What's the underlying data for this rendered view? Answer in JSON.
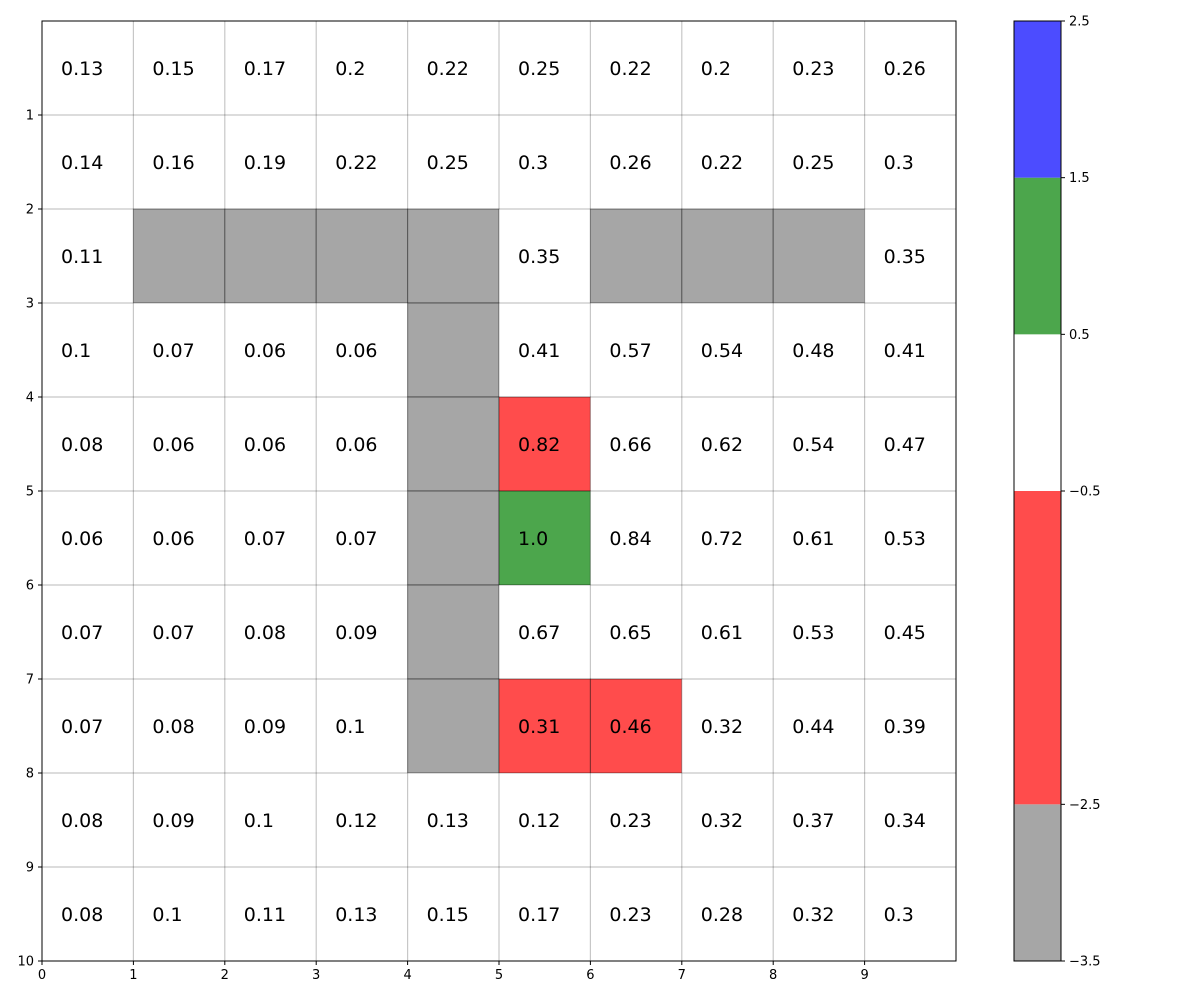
{
  "chart_data": {
    "type": "heatmap",
    "title": "",
    "xlabel": "",
    "ylabel": "",
    "x_ticks": [
      "0",
      "1",
      "2",
      "3",
      "4",
      "5",
      "6",
      "7",
      "8",
      "9"
    ],
    "y_ticks": [
      "1",
      "2",
      "3",
      "4",
      "5",
      "6",
      "7",
      "8",
      "9",
      "10"
    ],
    "xlim": [
      0,
      10
    ],
    "ylim": [
      10,
      0
    ],
    "grid": true,
    "cell_values": [
      [
        "0.13",
        "0.15",
        "0.17",
        "0.2",
        "0.22",
        "0.25",
        "0.22",
        "0.2",
        "0.23",
        "0.26"
      ],
      [
        "0.14",
        "0.16",
        "0.19",
        "0.22",
        "0.25",
        "0.3",
        "0.26",
        "0.22",
        "0.25",
        "0.3"
      ],
      [
        "0.11",
        "",
        "",
        "",
        "",
        "0.35",
        "",
        "",
        "",
        "0.35"
      ],
      [
        "0.1",
        "0.07",
        "0.06",
        "0.06",
        "",
        "0.41",
        "0.57",
        "0.54",
        "0.48",
        "0.41"
      ],
      [
        "0.08",
        "0.06",
        "0.06",
        "0.06",
        "",
        "0.82",
        "0.66",
        "0.62",
        "0.54",
        "0.47"
      ],
      [
        "0.06",
        "0.06",
        "0.07",
        "0.07",
        "",
        "1.0",
        "0.84",
        "0.72",
        "0.61",
        "0.53"
      ],
      [
        "0.07",
        "0.07",
        "0.08",
        "0.09",
        "",
        "0.67",
        "0.65",
        "0.61",
        "0.53",
        "0.45"
      ],
      [
        "0.07",
        "0.08",
        "0.09",
        "0.1",
        "",
        "0.31",
        "0.46",
        "0.32",
        "0.44",
        "0.39"
      ],
      [
        "0.08",
        "0.09",
        "0.1",
        "0.12",
        "0.13",
        "0.12",
        "0.23",
        "0.32",
        "0.37",
        "0.34"
      ],
      [
        "0.08",
        "0.1",
        "0.11",
        "0.13",
        "0.15",
        "0.17",
        "0.23",
        "0.28",
        "0.32",
        "0.3"
      ]
    ],
    "cell_classes": [
      [
        0,
        0,
        0,
        0,
        0,
        0,
        0,
        0,
        0,
        0
      ],
      [
        0,
        0,
        0,
        0,
        0,
        0,
        0,
        0,
        0,
        0
      ],
      [
        0,
        -3,
        -3,
        -3,
        -3,
        0,
        -3,
        -3,
        -3,
        0
      ],
      [
        0,
        0,
        0,
        0,
        -3,
        0,
        0,
        0,
        0,
        0
      ],
      [
        0,
        0,
        0,
        0,
        -3,
        -1,
        0,
        0,
        0,
        0
      ],
      [
        0,
        0,
        0,
        0,
        -3,
        1,
        0,
        0,
        0,
        0
      ],
      [
        0,
        0,
        0,
        0,
        -3,
        0,
        0,
        0,
        0,
        0
      ],
      [
        0,
        0,
        0,
        0,
        -3,
        -1,
        -1,
        0,
        0,
        0
      ],
      [
        0,
        0,
        0,
        0,
        0,
        0,
        0,
        0,
        0,
        0
      ],
      [
        0,
        0,
        0,
        0,
        0,
        0,
        0,
        0,
        0,
        0
      ]
    ],
    "colorbar": {
      "bounds": [
        -3.5,
        -2.5,
        -0.5,
        0.5,
        1.5,
        2.5
      ],
      "tick_labels": [
        "−3.5",
        "−2.5",
        "−0.5",
        "0.5",
        "1.5",
        "2.5"
      ],
      "colors": [
        "#a6a6a6",
        "#ff4c4c",
        "#ffffff",
        "#4ca64c",
        "#4c4cff"
      ],
      "class_values": [
        -3,
        -1,
        0,
        1,
        2
      ]
    }
  }
}
